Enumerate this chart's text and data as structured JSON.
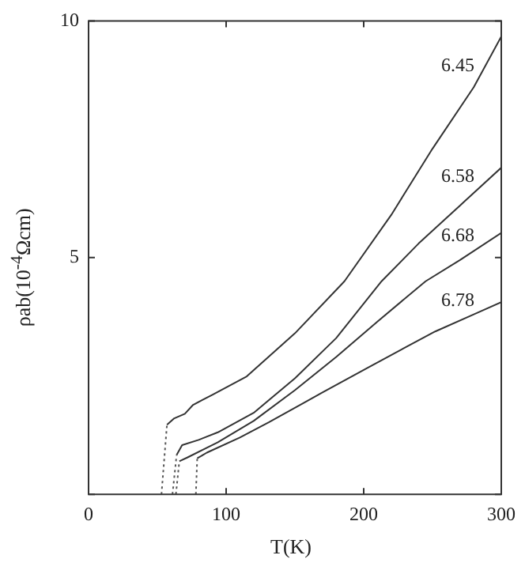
{
  "chart_data": {
    "type": "line",
    "xlabel": "T(K)",
    "ylabel": "ρab(10$^{-4}$Ωcm)",
    "xlim": [
      0,
      300
    ],
    "xticks": [
      0,
      100,
      200,
      300
    ],
    "ylim": [
      0,
      10
    ],
    "yticks": [
      {
        "value": 0,
        "label": null
      },
      5,
      10
    ],
    "grid": false,
    "legend": false,
    "marker": "none",
    "series": [
      {
        "name": "6.45",
        "color": "#333333",
        "x": [
          57,
          62,
          70,
          76,
          90,
          115,
          150,
          186,
          220,
          250,
          280,
          300
        ],
        "values": [
          1.47,
          1.6,
          1.7,
          1.89,
          2.1,
          2.49,
          3.4,
          4.5,
          5.9,
          7.3,
          8.6,
          9.67
        ]
      },
      {
        "name": "6.58",
        "color": "#333333",
        "x": [
          64,
          68,
          80,
          94,
          120,
          150,
          180,
          213,
          240,
          270,
          300
        ],
        "values": [
          0.83,
          1.04,
          1.15,
          1.31,
          1.72,
          2.45,
          3.3,
          4.5,
          5.3,
          6.1,
          6.9
        ]
      },
      {
        "name": "6.68",
        "color": "#333333",
        "x": [
          66,
          72,
          94,
          120,
          150,
          180,
          210,
          245,
          270,
          300
        ],
        "values": [
          0.7,
          0.78,
          1.1,
          1.55,
          2.2,
          2.9,
          3.65,
          4.5,
          4.95,
          5.52
        ]
      },
      {
        "name": "6.78",
        "color": "#333333",
        "x": [
          79,
          86,
          110,
          131,
          170,
          204,
          230,
          252,
          280,
          300
        ],
        "values": [
          0.76,
          0.88,
          1.2,
          1.52,
          2.15,
          2.69,
          3.1,
          3.44,
          3.8,
          4.06
        ]
      },
      {
        "color": "#555555",
        "line_style": "dotted",
        "x": [
          53,
          57
        ],
        "values": [
          0,
          1.47
        ]
      },
      {
        "color": "#555555",
        "line_style": "dotted",
        "x": [
          61,
          64
        ],
        "values": [
          0,
          0.83
        ]
      },
      {
        "color": "#555555",
        "line_style": "dotted",
        "x": [
          63.5,
          66
        ],
        "values": [
          0,
          0.7
        ]
      },
      {
        "color": "#555555",
        "line_style": "dotted",
        "x": [
          78,
          79
        ],
        "values": [
          0,
          0.76
        ]
      }
    ]
  }
}
